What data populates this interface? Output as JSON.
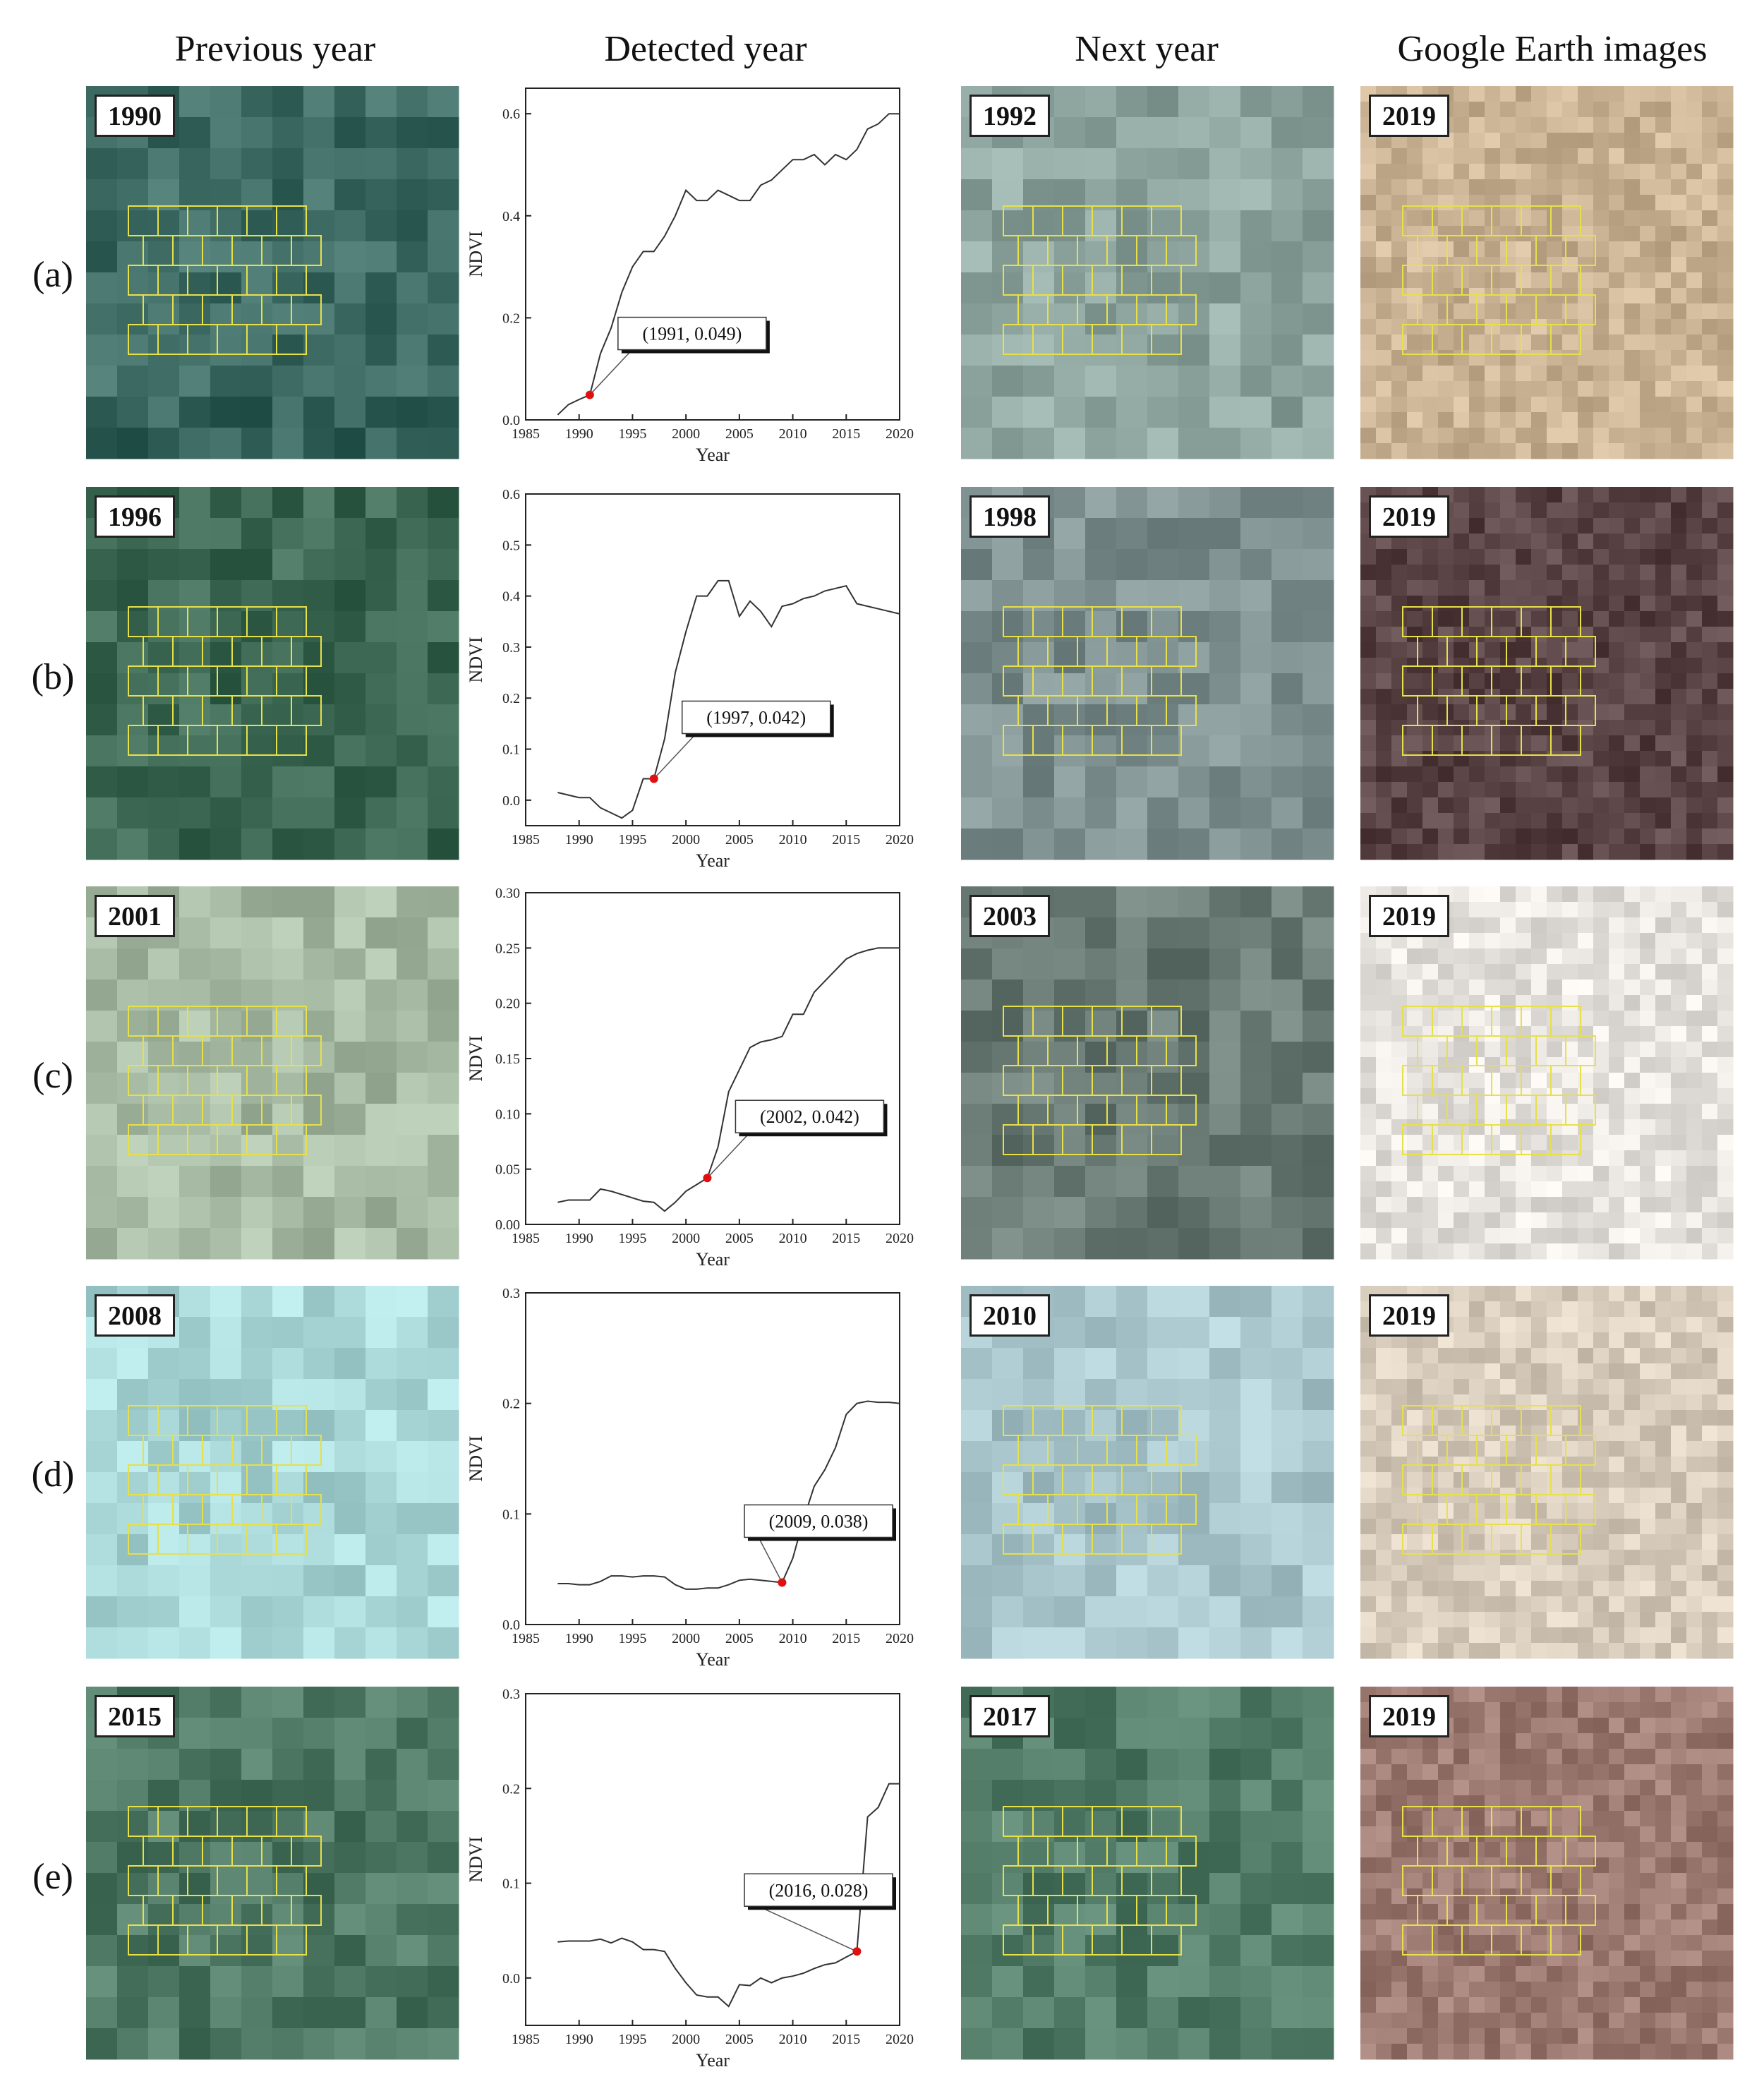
{
  "column_headers": {
    "previous": "Previous year",
    "detected": "Detected year",
    "next": "Next year",
    "google": "Google Earth images"
  },
  "rows": [
    {
      "label": "(a)",
      "prev_year": "1990",
      "next_year": "1992",
      "ge_year": "2019",
      "prev_color": "#3f6d66",
      "next_color": "#8fa6a0",
      "ge_color": "#c9b394",
      "callout": "(1991, 0.049)"
    },
    {
      "label": "(b)",
      "prev_year": "1996",
      "next_year": "1998",
      "ge_year": "2019",
      "prev_color": "#3d6854",
      "next_color": "#7d8f8e",
      "ge_color": "#5a4446",
      "callout": "(1997, 0.042)"
    },
    {
      "label": "(c)",
      "prev_year": "2001",
      "next_year": "2003",
      "ge_year": "2019",
      "prev_color": "#a7baa3",
      "next_color": "#6a7a74",
      "ge_color": "#e6e2de",
      "callout": "(2002, 0.042)"
    },
    {
      "label": "(d)",
      "prev_year": "2008",
      "next_year": "2010",
      "ge_year": "2019",
      "prev_color": "#a9d6d6",
      "next_color": "#a9c7cc",
      "ge_color": "#d8cdbd",
      "callout": "(2009, 0.038)"
    },
    {
      "label": "(e)",
      "prev_year": "2015",
      "next_year": "2017",
      "ge_year": "2019",
      "prev_color": "#4f7864",
      "next_color": "#527c68",
      "ge_color": "#9c7a72",
      "callout": "(2016, 0.028)"
    }
  ],
  "chart_data": [
    {
      "type": "line",
      "xlabel": "Year",
      "ylabel": "NDVI",
      "xlim": [
        1985,
        2020
      ],
      "ylim": [
        0,
        0.65
      ],
      "xticks": [
        "1985",
        "1990",
        "1995",
        "2000",
        "2005",
        "2010",
        "2015",
        "2020"
      ],
      "yticks": [
        "0.0",
        "0.2",
        "0.4",
        "0.6"
      ],
      "x": [
        1988,
        1989,
        1990,
        1991,
        1992,
        1993,
        1994,
        1995,
        1996,
        1997,
        1998,
        1999,
        2000,
        2001,
        2002,
        2003,
        2004,
        2005,
        2006,
        2007,
        2008,
        2009,
        2010,
        2011,
        2012,
        2013,
        2014,
        2015,
        2016,
        2017,
        2018,
        2019,
        2020
      ],
      "y": [
        0.01,
        0.03,
        0.04,
        0.049,
        0.13,
        0.18,
        0.25,
        0.3,
        0.33,
        0.33,
        0.36,
        0.4,
        0.45,
        0.43,
        0.43,
        0.45,
        0.44,
        0.43,
        0.43,
        0.46,
        0.47,
        0.49,
        0.51,
        0.51,
        0.52,
        0.5,
        0.52,
        0.51,
        0.53,
        0.57,
        0.58,
        0.6,
        0.6
      ],
      "highlight": {
        "x": 1991,
        "y": 0.049
      }
    },
    {
      "type": "line",
      "xlabel": "Year",
      "ylabel": "NDVI",
      "xlim": [
        1985,
        2020
      ],
      "ylim": [
        -0.05,
        0.6
      ],
      "xticks": [
        "1985",
        "1990",
        "1995",
        "2000",
        "2005",
        "2010",
        "2015",
        "2020"
      ],
      "yticks": [
        "0.0",
        "0.1",
        "0.2",
        "0.3",
        "0.4",
        "0.5",
        "0.6"
      ],
      "x": [
        1988,
        1989,
        1990,
        1991,
        1992,
        1993,
        1994,
        1995,
        1996,
        1997,
        1998,
        1999,
        2000,
        2001,
        2002,
        2003,
        2004,
        2005,
        2006,
        2007,
        2008,
        2009,
        2010,
        2011,
        2012,
        2013,
        2014,
        2015,
        2016,
        2017,
        2018,
        2019,
        2020
      ],
      "y": [
        0.015,
        0.01,
        0.005,
        0.005,
        -0.015,
        -0.025,
        -0.035,
        -0.02,
        0.042,
        0.042,
        0.12,
        0.25,
        0.33,
        0.4,
        0.4,
        0.43,
        0.43,
        0.36,
        0.39,
        0.37,
        0.34,
        0.38,
        0.385,
        0.395,
        0.4,
        0.41,
        0.415,
        0.42,
        0.385,
        0.38,
        0.375,
        0.37,
        0.365
      ],
      "highlight": {
        "x": 1997,
        "y": 0.042
      }
    },
    {
      "type": "line",
      "xlabel": "Year",
      "ylabel": "NDVI",
      "xlim": [
        1985,
        2020
      ],
      "ylim": [
        0,
        0.3
      ],
      "xticks": [
        "1985",
        "1990",
        "1995",
        "2000",
        "2005",
        "2010",
        "2015",
        "2020"
      ],
      "yticks": [
        "0.00",
        "0.05",
        "0.10",
        "0.15",
        "0.20",
        "0.25",
        "0.30"
      ],
      "x": [
        1988,
        1989,
        1990,
        1991,
        1992,
        1993,
        1994,
        1995,
        1996,
        1997,
        1998,
        1999,
        2000,
        2001,
        2002,
        2003,
        2004,
        2005,
        2006,
        2007,
        2008,
        2009,
        2010,
        2011,
        2012,
        2013,
        2014,
        2015,
        2016,
        2017,
        2018,
        2019,
        2020
      ],
      "y": [
        0.02,
        0.022,
        0.022,
        0.022,
        0.032,
        0.03,
        0.027,
        0.024,
        0.021,
        0.02,
        0.012,
        0.02,
        0.03,
        0.036,
        0.042,
        0.07,
        0.12,
        0.14,
        0.16,
        0.165,
        0.167,
        0.17,
        0.19,
        0.19,
        0.21,
        0.22,
        0.23,
        0.24,
        0.245,
        0.248,
        0.25,
        0.25,
        0.25
      ],
      "highlight": {
        "x": 2002,
        "y": 0.042
      }
    },
    {
      "type": "line",
      "xlabel": "Year",
      "ylabel": "NDVI",
      "xlim": [
        1985,
        2020
      ],
      "ylim": [
        0,
        0.3
      ],
      "xticks": [
        "1985",
        "1990",
        "1995",
        "2000",
        "2005",
        "2010",
        "2015",
        "2020"
      ],
      "yticks": [
        "0.0",
        "0.1",
        "0.2",
        "0.3"
      ],
      "x": [
        1988,
        1989,
        1990,
        1991,
        1992,
        1993,
        1994,
        1995,
        1996,
        1997,
        1998,
        1999,
        2000,
        2001,
        2002,
        2003,
        2004,
        2005,
        2006,
        2007,
        2008,
        2009,
        2010,
        2011,
        2012,
        2013,
        2014,
        2015,
        2016,
        2017,
        2018,
        2019,
        2020
      ],
      "y": [
        0.037,
        0.037,
        0.036,
        0.036,
        0.039,
        0.044,
        0.044,
        0.043,
        0.044,
        0.044,
        0.043,
        0.036,
        0.032,
        0.032,
        0.033,
        0.033,
        0.036,
        0.04,
        0.041,
        0.04,
        0.039,
        0.038,
        0.06,
        0.095,
        0.125,
        0.14,
        0.16,
        0.19,
        0.2,
        0.202,
        0.201,
        0.201,
        0.2
      ],
      "highlight": {
        "x": 2009,
        "y": 0.038
      }
    },
    {
      "type": "line",
      "xlabel": "Year",
      "ylabel": "NDVI",
      "xlim": [
        1985,
        2020
      ],
      "ylim": [
        -0.05,
        0.3
      ],
      "xticks": [
        "1985",
        "1990",
        "1995",
        "2000",
        "2005",
        "2010",
        "2015",
        "2020"
      ],
      "yticks": [
        "0.0",
        "0.1",
        "0.2",
        "0.3"
      ],
      "x": [
        1988,
        1989,
        1990,
        1991,
        1992,
        1993,
        1994,
        1995,
        1996,
        1997,
        1998,
        1999,
        2000,
        2001,
        2002,
        2003,
        2004,
        2005,
        2006,
        2007,
        2008,
        2009,
        2010,
        2011,
        2012,
        2013,
        2014,
        2015,
        2016,
        2017,
        2018,
        2019,
        2020
      ],
      "y": [
        0.038,
        0.039,
        0.039,
        0.039,
        0.041,
        0.037,
        0.042,
        0.038,
        0.03,
        0.03,
        0.028,
        0.01,
        -0.005,
        -0.018,
        -0.02,
        -0.02,
        -0.03,
        -0.007,
        -0.008,
        0.0,
        -0.005,
        0.0,
        0.002,
        0.005,
        0.01,
        0.014,
        0.016,
        0.022,
        0.028,
        0.17,
        0.18,
        0.205,
        0.205
      ],
      "highlight": {
        "x": 2016,
        "y": 0.028
      }
    }
  ]
}
